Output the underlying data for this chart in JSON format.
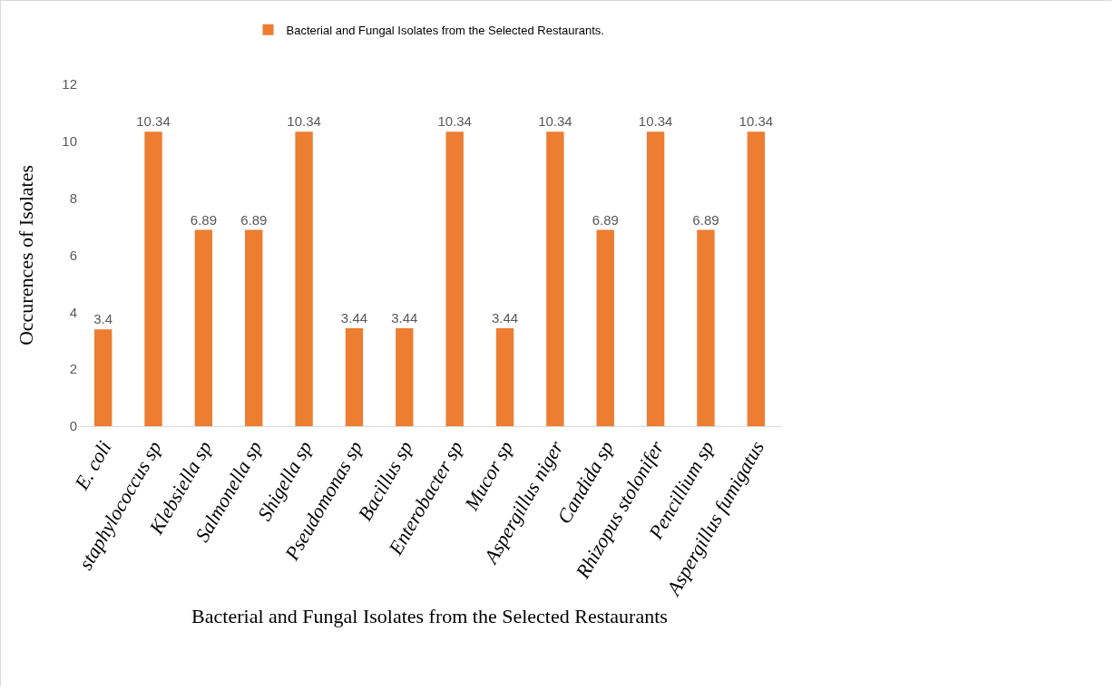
{
  "chart_data": {
    "type": "bar",
    "categories": [
      "E. coli",
      "staphylococcus sp",
      "Klebsiella sp",
      "Salmonella sp",
      "Shigella sp",
      "Pseudomonas sp",
      "Bacillus sp",
      "Enterobacter sp",
      "Mucor sp",
      "Aspergillus niger",
      "Candida sp",
      "Rhizopus stolonifer",
      "Pencillium sp",
      "Aspergillus fumigatus"
    ],
    "series": [
      {
        "name": "Bacterial and Fungal Isolates from the Selected Restaurants.",
        "color": "#ed7d31",
        "values": [
          3.4,
          10.34,
          6.89,
          6.89,
          10.34,
          3.44,
          3.44,
          10.34,
          3.44,
          10.34,
          6.89,
          10.34,
          6.89,
          10.34
        ]
      }
    ],
    "xlabel": "Bacterial and Fungal Isolates from the Selected Restaurants",
    "ylabel": "Occurences of Isolates",
    "ylim": [
      0,
      12
    ],
    "yticks": [
      0,
      2,
      4,
      6,
      8,
      10,
      12
    ],
    "grid": false,
    "legend": "top",
    "data_labels": true
  }
}
